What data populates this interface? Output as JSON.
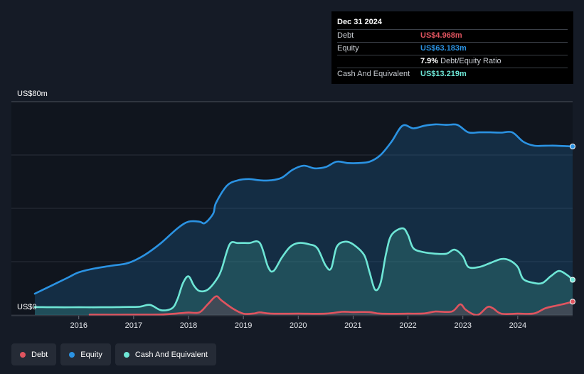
{
  "tooltip": {
    "date": "Dec 31 2024",
    "debt_label": "Debt",
    "debt_value": "US$4.968m",
    "equity_label": "Equity",
    "equity_value": "US$63.183m",
    "ratio_value": "7.9%",
    "ratio_label": "Debt/Equity Ratio",
    "cash_label": "Cash And Equivalent",
    "cash_value": "US$13.219m"
  },
  "legend": [
    {
      "label": "Debt",
      "color": "#e0545f"
    },
    {
      "label": "Equity",
      "color": "#2b93e3"
    },
    {
      "label": "Cash And Equivalent",
      "color": "#6ee6d6"
    }
  ],
  "chart_data": {
    "type": "area",
    "title": "",
    "y_axis_labels": [
      "US$80m",
      "US$0"
    ],
    "ylim": [
      0,
      80
    ],
    "xlim": [
      2015.2,
      2025.0
    ],
    "x_ticks": [
      2016,
      2017,
      2018,
      2019,
      2020,
      2021,
      2022,
      2023,
      2024
    ],
    "x_tick_labels": [
      "2016",
      "2017",
      "2018",
      "2019",
      "2020",
      "2021",
      "2022",
      "2023",
      "2024"
    ],
    "series": [
      {
        "name": "Equity",
        "color": "#2b93e3",
        "points": [
          [
            2015.2,
            8
          ],
          [
            2015.5,
            11
          ],
          [
            2015.8,
            14
          ],
          [
            2016.0,
            16
          ],
          [
            2016.3,
            17.5
          ],
          [
            2016.6,
            18.5
          ],
          [
            2016.9,
            19.5
          ],
          [
            2017.2,
            22.5
          ],
          [
            2017.5,
            27
          ],
          [
            2017.8,
            32.5
          ],
          [
            2018.0,
            35
          ],
          [
            2018.2,
            35
          ],
          [
            2018.3,
            34.5
          ],
          [
            2018.45,
            38
          ],
          [
            2018.5,
            42
          ],
          [
            2018.7,
            48.5
          ],
          [
            2018.9,
            50.5
          ],
          [
            2019.1,
            51
          ],
          [
            2019.3,
            50.5
          ],
          [
            2019.5,
            50.5
          ],
          [
            2019.7,
            51.5
          ],
          [
            2019.9,
            54.5
          ],
          [
            2020.1,
            56
          ],
          [
            2020.3,
            55
          ],
          [
            2020.5,
            55.5
          ],
          [
            2020.7,
            57.5
          ],
          [
            2020.9,
            57
          ],
          [
            2021.1,
            57
          ],
          [
            2021.3,
            57.5
          ],
          [
            2021.5,
            60
          ],
          [
            2021.7,
            65
          ],
          [
            2021.9,
            71
          ],
          [
            2022.1,
            70
          ],
          [
            2022.3,
            71
          ],
          [
            2022.5,
            71.5
          ],
          [
            2022.7,
            71.3
          ],
          [
            2022.9,
            71.3
          ],
          [
            2023.1,
            68.5
          ],
          [
            2023.3,
            68.5
          ],
          [
            2023.5,
            68.5
          ],
          [
            2023.7,
            68.4
          ],
          [
            2023.9,
            68.5
          ],
          [
            2024.1,
            65
          ],
          [
            2024.3,
            63.5
          ],
          [
            2024.5,
            63.5
          ],
          [
            2024.7,
            63.5
          ],
          [
            2024.9,
            63.3
          ],
          [
            2025.0,
            63.2
          ]
        ]
      },
      {
        "name": "Cash And Equivalent",
        "color": "#6ee6d6",
        "points": [
          [
            2015.2,
            3
          ],
          [
            2015.6,
            2.9
          ],
          [
            2016.0,
            2.9
          ],
          [
            2016.4,
            2.9
          ],
          [
            2016.8,
            3
          ],
          [
            2017.1,
            3.1
          ],
          [
            2017.3,
            3.8
          ],
          [
            2017.5,
            1.8
          ],
          [
            2017.7,
            2.5
          ],
          [
            2017.8,
            6
          ],
          [
            2017.9,
            12
          ],
          [
            2018.0,
            14.5
          ],
          [
            2018.1,
            11
          ],
          [
            2018.2,
            9
          ],
          [
            2018.35,
            9.5
          ],
          [
            2018.5,
            13
          ],
          [
            2018.6,
            17
          ],
          [
            2018.75,
            26.5
          ],
          [
            2018.9,
            27
          ],
          [
            2019.1,
            27
          ],
          [
            2019.3,
            27
          ],
          [
            2019.45,
            18
          ],
          [
            2019.55,
            16.5
          ],
          [
            2019.7,
            21.5
          ],
          [
            2019.85,
            25.5
          ],
          [
            2020.0,
            27
          ],
          [
            2020.2,
            26.5
          ],
          [
            2020.35,
            25
          ],
          [
            2020.5,
            18.5
          ],
          [
            2020.6,
            17.5
          ],
          [
            2020.7,
            25.5
          ],
          [
            2020.85,
            27.5
          ],
          [
            2021.0,
            26.5
          ],
          [
            2021.2,
            22.5
          ],
          [
            2021.3,
            16
          ],
          [
            2021.4,
            9.5
          ],
          [
            2021.5,
            12
          ],
          [
            2021.6,
            23
          ],
          [
            2021.7,
            30
          ],
          [
            2021.9,
            32.5
          ],
          [
            2022.0,
            30
          ],
          [
            2022.1,
            25
          ],
          [
            2022.3,
            23.5
          ],
          [
            2022.5,
            23
          ],
          [
            2022.7,
            23
          ],
          [
            2022.85,
            24.5
          ],
          [
            2023.0,
            22
          ],
          [
            2023.1,
            18
          ],
          [
            2023.3,
            18
          ],
          [
            2023.5,
            19.5
          ],
          [
            2023.7,
            21
          ],
          [
            2023.85,
            20.5
          ],
          [
            2024.0,
            18
          ],
          [
            2024.1,
            13.5
          ],
          [
            2024.3,
            12
          ],
          [
            2024.45,
            12
          ],
          [
            2024.6,
            14.5
          ],
          [
            2024.75,
            16.5
          ],
          [
            2024.9,
            15
          ],
          [
            2025.0,
            13.2
          ]
        ]
      },
      {
        "name": "Debt",
        "color": "#e0545f",
        "points": [
          [
            2016.2,
            0.1
          ],
          [
            2017.0,
            0.1
          ],
          [
            2017.5,
            0.2
          ],
          [
            2017.8,
            0.6
          ],
          [
            2018.0,
            0.9
          ],
          [
            2018.2,
            1
          ],
          [
            2018.35,
            4
          ],
          [
            2018.5,
            7
          ],
          [
            2018.6,
            5.5
          ],
          [
            2018.8,
            2.5
          ],
          [
            2019.0,
            0.5
          ],
          [
            2019.2,
            0.6
          ],
          [
            2019.3,
            1
          ],
          [
            2019.5,
            0.5
          ],
          [
            2020.0,
            0.5
          ],
          [
            2020.5,
            0.5
          ],
          [
            2020.8,
            1.2
          ],
          [
            2021.0,
            1.1
          ],
          [
            2021.3,
            1.1
          ],
          [
            2021.5,
            0.5
          ],
          [
            2022.0,
            0.5
          ],
          [
            2022.3,
            0.6
          ],
          [
            2022.5,
            1.3
          ],
          [
            2022.8,
            1.3
          ],
          [
            2022.95,
            4
          ],
          [
            2023.05,
            2
          ],
          [
            2023.2,
            0.2
          ],
          [
            2023.3,
            0.3
          ],
          [
            2023.45,
            3
          ],
          [
            2023.55,
            2.5
          ],
          [
            2023.7,
            0.5
          ],
          [
            2024.0,
            0.5
          ],
          [
            2024.3,
            0.6
          ],
          [
            2024.5,
            2.5
          ],
          [
            2024.7,
            3.5
          ],
          [
            2024.85,
            4.2
          ],
          [
            2025.0,
            5
          ]
        ]
      }
    ]
  }
}
